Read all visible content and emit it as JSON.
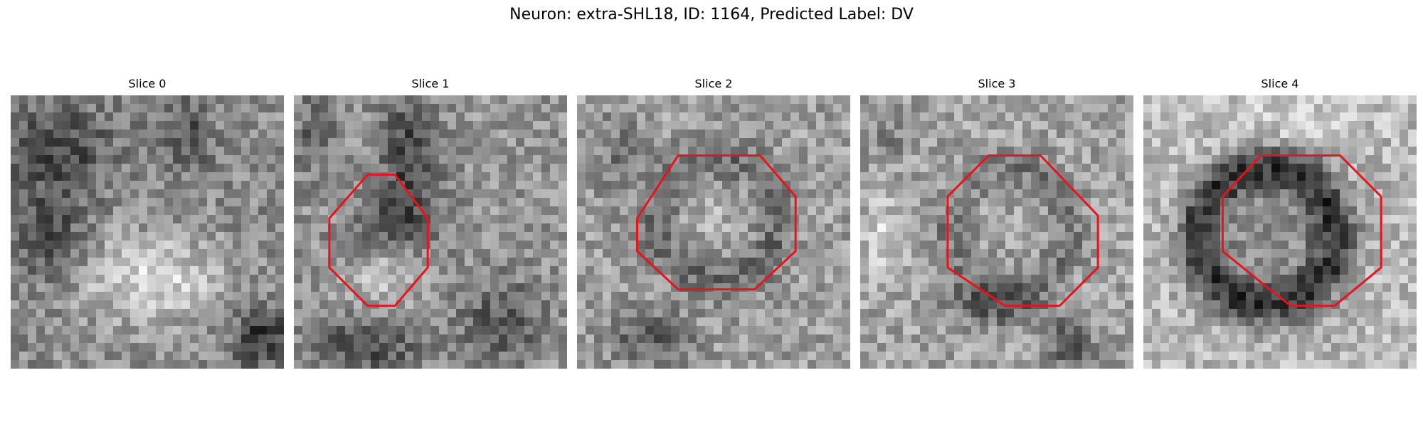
{
  "figure": {
    "title": "Neuron: extra-SHL18, ID: 1164, Predicted Label: DV"
  },
  "slices": [
    {
      "label": "Slice 0",
      "roi": false
    },
    {
      "label": "Slice 1",
      "roi": true
    },
    {
      "label": "Slice 2",
      "roi": true
    },
    {
      "label": "Slice 3",
      "roi": true
    },
    {
      "label": "Slice 4",
      "roi": true
    }
  ],
  "colors": {
    "roi_outline": "#e8141c",
    "background": "#ffffff"
  },
  "image_grid": "32x32 grayscale microscopy patch"
}
